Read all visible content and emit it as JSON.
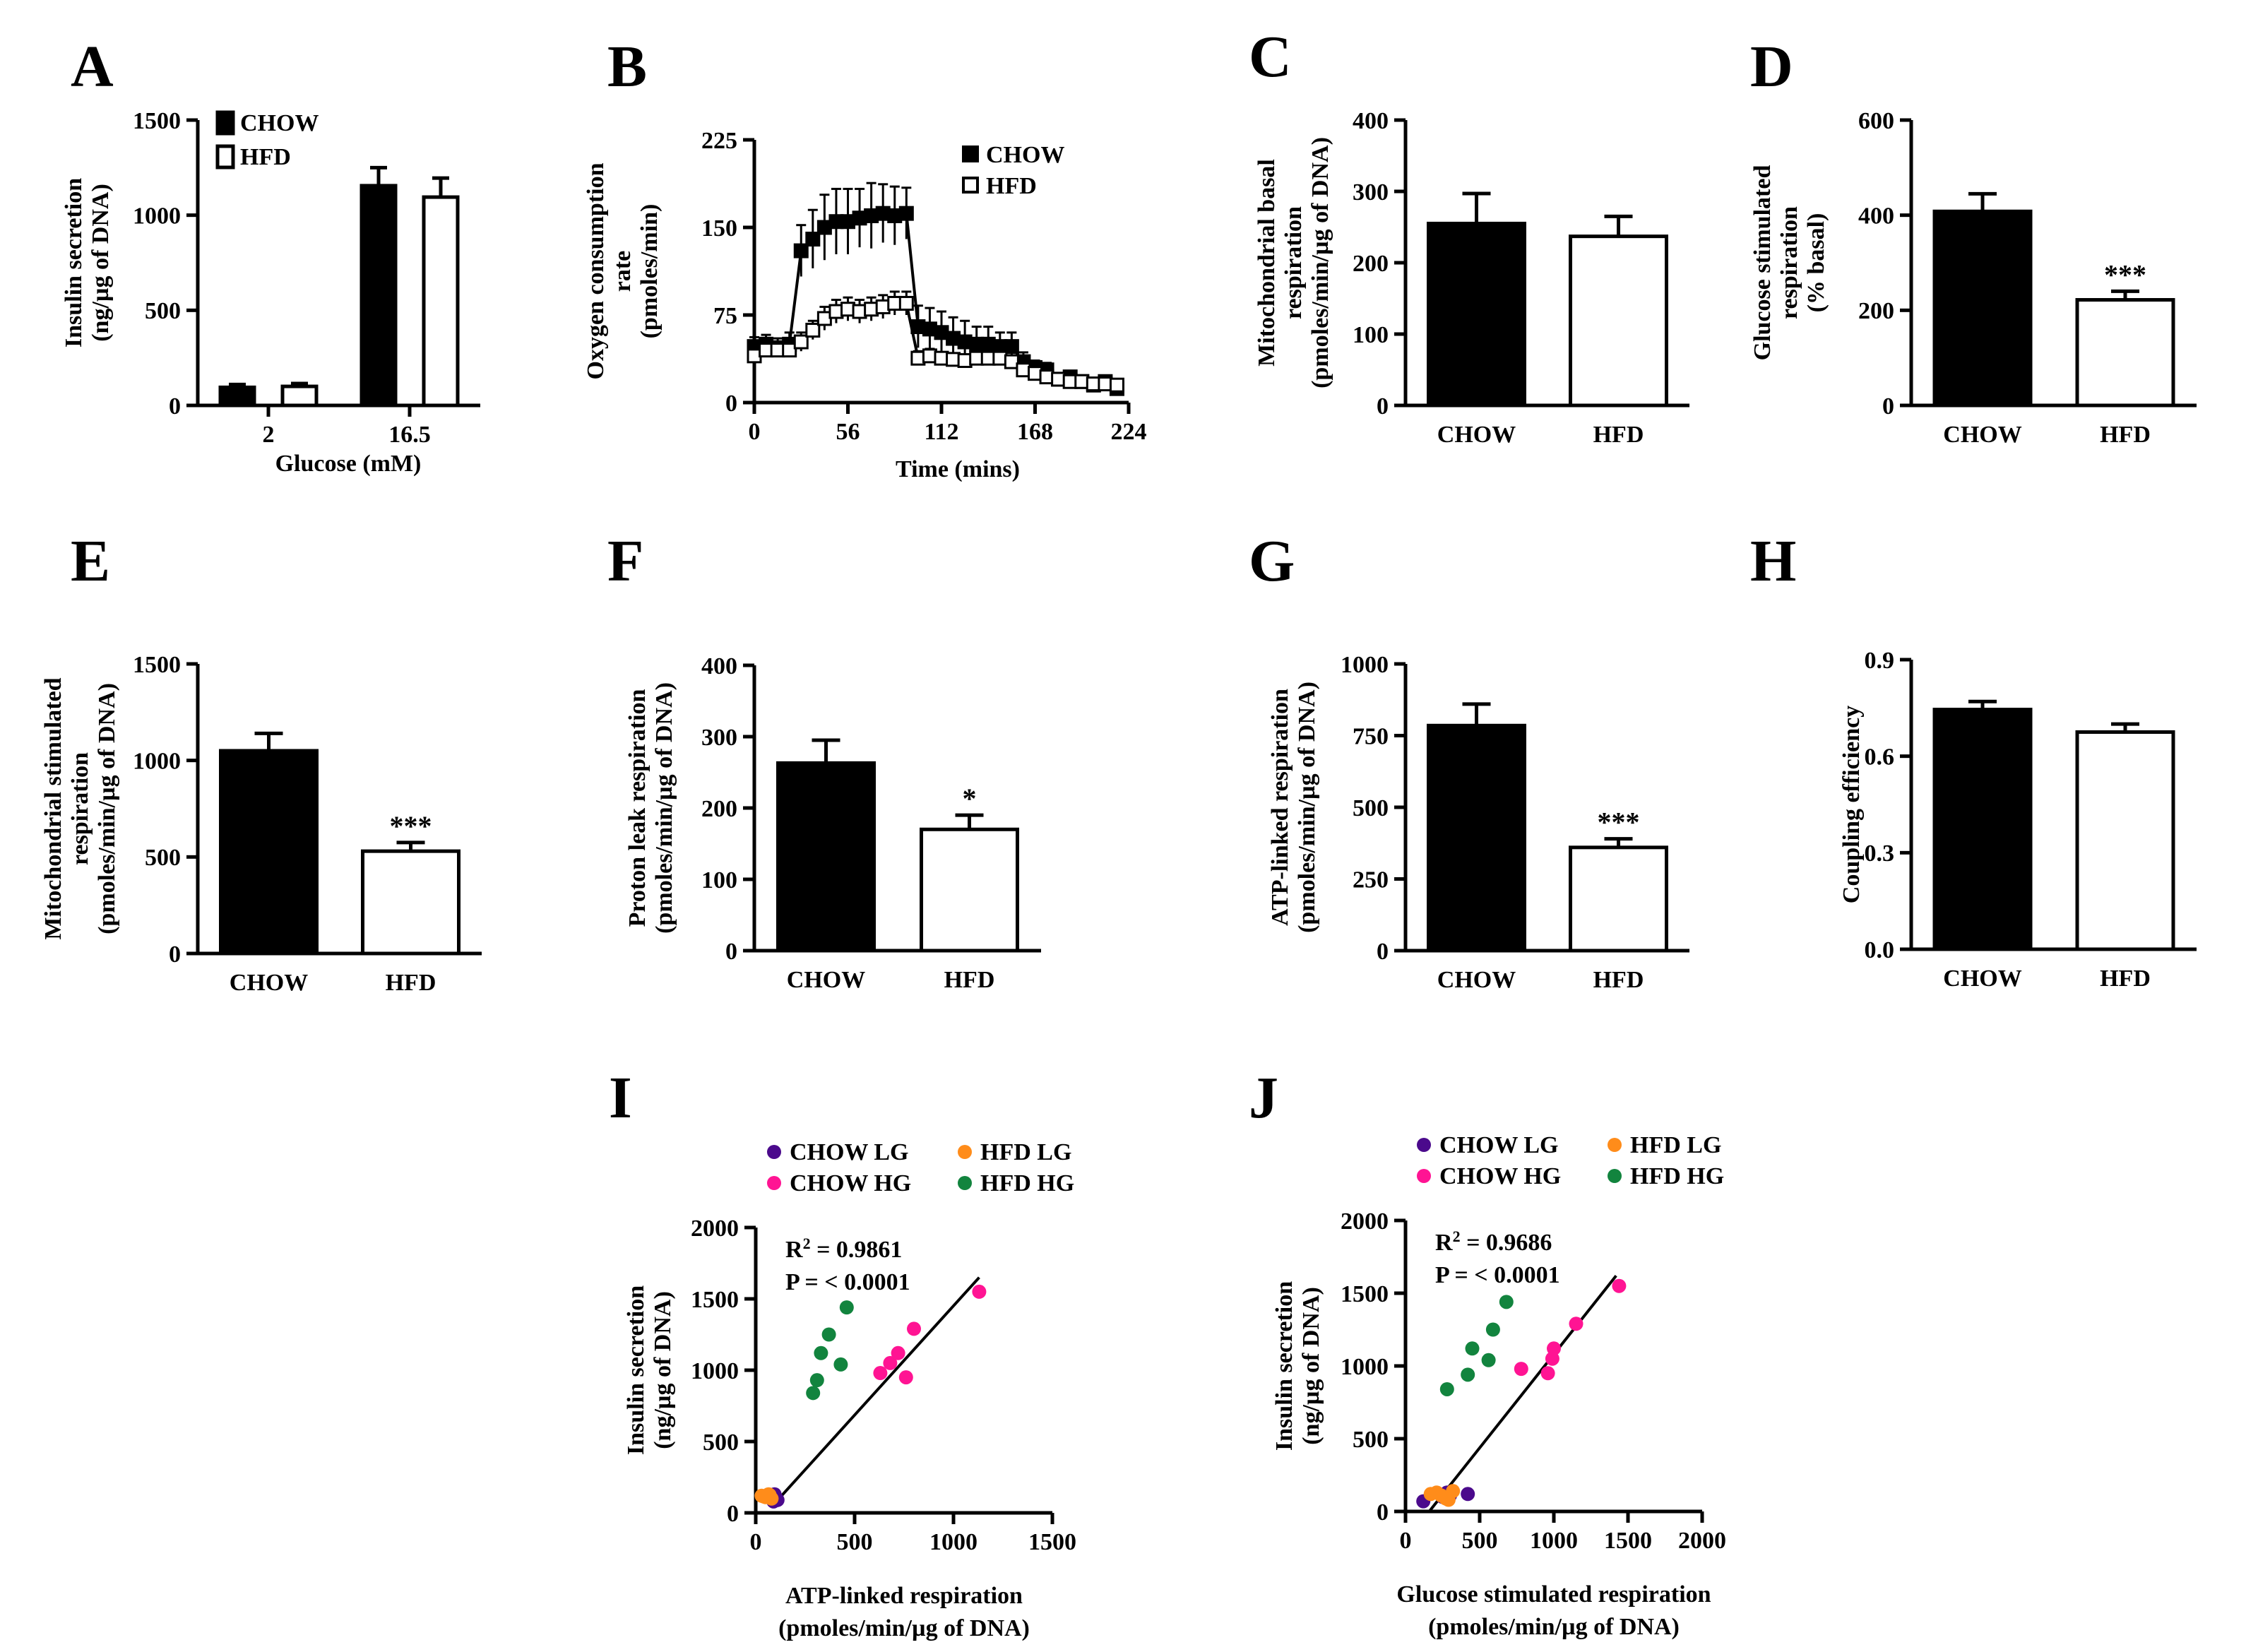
{
  "chart_data": [
    {
      "panel": "A",
      "type": "bar",
      "ylabel": [
        "Insulin secretion",
        "(ng/µg of DNA)"
      ],
      "xlabel": "Glucose (mM)",
      "categories": [
        "2",
        "16.5"
      ],
      "series": [
        {
          "name": "CHOW",
          "color": "#000000",
          "values": [
            95,
            1155
          ],
          "errors": [
            15,
            95
          ]
        },
        {
          "name": "HFD",
          "color": "#ffffff",
          "values": [
            100,
            1095
          ],
          "errors": [
            15,
            100
          ]
        }
      ],
      "ylim": [
        0,
        1500
      ],
      "yticks": [
        "0",
        "500",
        "1000",
        "1500"
      ],
      "legend": [
        "CHOW",
        "HFD"
      ]
    },
    {
      "panel": "B",
      "type": "line",
      "ylabel": [
        "Oxygen consumption",
        "rate",
        "(pmoles/min)"
      ],
      "xlabel": "Time (mins)",
      "xlim": [
        0,
        224
      ],
      "xticks": [
        "0",
        "56",
        "112",
        "168",
        "224"
      ],
      "ylim": [
        0,
        225
      ],
      "yticks": [
        "0",
        "75",
        "150",
        "225"
      ],
      "legend": [
        "CHOW",
        "HFD"
      ],
      "series": [
        {
          "name": "CHOW",
          "marker": "filled-square",
          "x": [
            0,
            7,
            14,
            21,
            28,
            35,
            42,
            49,
            56,
            63,
            70,
            77,
            84,
            91,
            98,
            105,
            112,
            119,
            126,
            133,
            140,
            147,
            154,
            161,
            168,
            175,
            182,
            189,
            196,
            203,
            210,
            217
          ],
          "y": [
            48,
            50,
            47,
            50,
            130,
            140,
            150,
            155,
            155,
            158,
            160,
            162,
            160,
            162,
            65,
            63,
            60,
            55,
            52,
            50,
            50,
            48,
            48,
            35,
            30,
            28,
            20,
            22,
            18,
            15,
            18,
            12
          ],
          "err": [
            8,
            8,
            8,
            10,
            22,
            25,
            28,
            28,
            28,
            25,
            28,
            25,
            25,
            22,
            18,
            18,
            18,
            18,
            18,
            15,
            15,
            12,
            12,
            8,
            6,
            6,
            5,
            5,
            5,
            4,
            4,
            4
          ]
        },
        {
          "name": "HFD",
          "marker": "open-square",
          "x": [
            0,
            7,
            14,
            21,
            28,
            35,
            42,
            49,
            56,
            63,
            70,
            77,
            84,
            91,
            98,
            105,
            112,
            119,
            126,
            133,
            140,
            147,
            154,
            161,
            168,
            175,
            182,
            189,
            196,
            203,
            210,
            217
          ],
          "y": [
            40,
            45,
            45,
            45,
            52,
            62,
            72,
            78,
            80,
            78,
            80,
            82,
            85,
            85,
            38,
            40,
            38,
            37,
            36,
            38,
            38,
            38,
            35,
            28,
            25,
            22,
            20,
            18,
            18,
            16,
            16,
            15
          ],
          "err": [
            6,
            6,
            6,
            6,
            8,
            8,
            10,
            10,
            10,
            10,
            10,
            10,
            10,
            10,
            6,
            6,
            5,
            5,
            5,
            5,
            5,
            5,
            5,
            4,
            4,
            4,
            4,
            4,
            3,
            3,
            3,
            3
          ]
        }
      ]
    },
    {
      "panel": "C",
      "type": "bar",
      "ylabel": [
        "Mitochondrial basal",
        "respiration",
        "(pmoles/min/µg of DNA)"
      ],
      "categories": [
        "CHOW",
        "HFD"
      ],
      "values": [
        255,
        237
      ],
      "errors": [
        42,
        28
      ],
      "colors": [
        "#000000",
        "#ffffff"
      ],
      "ylim": [
        0,
        400
      ],
      "yticks": [
        "0",
        "100",
        "200",
        "300",
        "400"
      ],
      "annotations": [
        "",
        ""
      ]
    },
    {
      "panel": "D",
      "type": "bar",
      "ylabel": [
        "Glucose stimulated",
        "respiration",
        "(% basal)"
      ],
      "categories": [
        "CHOW",
        "HFD"
      ],
      "values": [
        408,
        222
      ],
      "errors": [
        37,
        18
      ],
      "colors": [
        "#000000",
        "#ffffff"
      ],
      "ylim": [
        0,
        600
      ],
      "yticks": [
        "0",
        "200",
        "400",
        "600"
      ],
      "annotations": [
        "",
        "***"
      ]
    },
    {
      "panel": "E",
      "type": "bar",
      "ylabel": [
        "Mitochondrial stimulated",
        "respiration",
        "(pmoles/min/µg of DNA)"
      ],
      "categories": [
        "CHOW",
        "HFD"
      ],
      "values": [
        1050,
        530
      ],
      "errors": [
        90,
        45
      ],
      "colors": [
        "#000000",
        "#ffffff"
      ],
      "ylim": [
        0,
        1500
      ],
      "yticks": [
        "0",
        "500",
        "1000",
        "1500"
      ],
      "annotations": [
        "",
        "***"
      ]
    },
    {
      "panel": "F",
      "type": "bar",
      "ylabel": [
        "Proton leak respiration",
        "(pmoles/min/µg of DNA)"
      ],
      "categories": [
        "CHOW",
        "HFD"
      ],
      "values": [
        263,
        170
      ],
      "errors": [
        32,
        20
      ],
      "colors": [
        "#000000",
        "#ffffff"
      ],
      "ylim": [
        0,
        400
      ],
      "yticks": [
        "0",
        "100",
        "200",
        "300",
        "400"
      ],
      "annotations": [
        "",
        "*"
      ]
    },
    {
      "panel": "G",
      "type": "bar",
      "ylabel": [
        "ATP-linked respiration",
        "(pmoles/min/µg of DNA)"
      ],
      "categories": [
        "CHOW",
        "HFD"
      ],
      "values": [
        785,
        360
      ],
      "errors": [
        75,
        30
      ],
      "colors": [
        "#000000",
        "#ffffff"
      ],
      "ylim": [
        0,
        1000
      ],
      "yticks": [
        "0",
        "250",
        "500",
        "750",
        "1000"
      ],
      "annotations": [
        "",
        "***"
      ]
    },
    {
      "panel": "H",
      "type": "bar",
      "ylabel": [
        "Coupling efficiency"
      ],
      "categories": [
        "CHOW",
        "HFD"
      ],
      "values": [
        0.745,
        0.675
      ],
      "errors": [
        0.025,
        0.025
      ],
      "colors": [
        "#000000",
        "#ffffff"
      ],
      "ylim": [
        0,
        0.9
      ],
      "yticks": [
        "0.0",
        "0.3",
        "0.6",
        "0.9"
      ],
      "annotations": [
        "",
        ""
      ]
    },
    {
      "panel": "I",
      "type": "scatter",
      "ylabel": [
        "Insulin secretion",
        "(ng/µg of DNA)"
      ],
      "xlabel": [
        "ATP-linked respiration",
        "(pmoles/min/µg of DNA)"
      ],
      "xlim": [
        0,
        1500
      ],
      "xticks": [
        "0",
        "500",
        "1000",
        "1500"
      ],
      "ylim": [
        0,
        2000
      ],
      "yticks": [
        "0",
        "500",
        "1000",
        "1500",
        "2000"
      ],
      "stats": [
        "= 0.9861",
        "P =  < 0.0001"
      ],
      "legend": [
        "CHOW LG",
        "HFD LG",
        "CHOW HG",
        "HFD HG"
      ],
      "fit": {
        "x": [
          85,
          1130
        ],
        "y": [
          50,
          1650
        ]
      },
      "series": [
        {
          "name": "CHOW LG",
          "color": "#4b0a8c",
          "x": [
            90,
            100,
            110,
            95,
            105
          ],
          "y": [
            80,
            110,
            90,
            130,
            100
          ]
        },
        {
          "name": "HFD LG",
          "color": "#ff8c1a",
          "x": [
            30,
            50,
            65,
            80,
            40,
            70
          ],
          "y": [
            120,
            110,
            130,
            100,
            115,
            125
          ]
        },
        {
          "name": "CHOW HG",
          "color": "#ff1493",
          "x": [
            630,
            680,
            720,
            760,
            800,
            1130
          ],
          "y": [
            980,
            1050,
            1120,
            950,
            1290,
            1550
          ]
        },
        {
          "name": "HFD HG",
          "color": "#12843e",
          "x": [
            290,
            310,
            330,
            370,
            430,
            460
          ],
          "y": [
            840,
            930,
            1120,
            1250,
            1040,
            1440
          ]
        }
      ]
    },
    {
      "panel": "J",
      "type": "scatter",
      "ylabel": [
        "Insulin secretion",
        "(ng/µg of DNA)"
      ],
      "xlabel": [
        "Glucose stimulated respiration",
        "(pmoles/min/µg of DNA)"
      ],
      "xlim": [
        0,
        2000
      ],
      "xticks": [
        "0",
        "500",
        "1000",
        "1500",
        "2000"
      ],
      "ylim": [
        0,
        2000
      ],
      "yticks": [
        "0",
        "500",
        "1000",
        "1500",
        "2000"
      ],
      "stats": [
        "= 0.9686",
        "P =  < 0.0001"
      ],
      "legend": [
        "CHOW LG",
        "HFD LG",
        "CHOW HG",
        "HFD HG"
      ],
      "fit": {
        "x": [
          160,
          1420
        ],
        "y": [
          0,
          1620
        ]
      },
      "series": [
        {
          "name": "CHOW LG",
          "color": "#4b0a8c",
          "x": [
            120,
            250,
            280,
            300,
            420
          ],
          "y": [
            70,
            100,
            130,
            110,
            120
          ]
        },
        {
          "name": "HFD LG",
          "color": "#ff8c1a",
          "x": [
            170,
            210,
            240,
            270,
            320,
            290
          ],
          "y": [
            120,
            130,
            110,
            90,
            140,
            80
          ]
        },
        {
          "name": "CHOW HG",
          "color": "#ff1493",
          "x": [
            780,
            960,
            990,
            1000,
            1150,
            1440
          ],
          "y": [
            980,
            950,
            1050,
            1120,
            1290,
            1550
          ]
        },
        {
          "name": "HFD HG",
          "color": "#12843e",
          "x": [
            280,
            420,
            450,
            560,
            590,
            680
          ],
          "y": [
            840,
            940,
            1120,
            1040,
            1250,
            1440
          ]
        }
      ]
    }
  ]
}
